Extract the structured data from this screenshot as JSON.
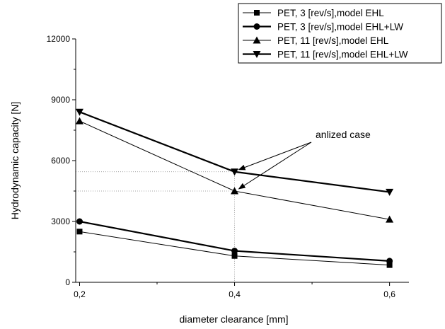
{
  "chart_data": {
    "type": "line",
    "xlabel": "diameter clearance [mm]",
    "ylabel": "Hydrodynamic capacity [N]",
    "x": [
      0.2,
      0.4,
      0.6
    ],
    "x_tick_labels": [
      "0,2",
      "0,4",
      "0,6"
    ],
    "y_ticks": [
      0,
      3000,
      6000,
      9000,
      12000
    ],
    "y_tick_labels": [
      "0",
      "3000",
      "6000",
      "9000",
      "12000"
    ],
    "xlim": [
      0.195,
      0.625
    ],
    "ylim": [
      0,
      12000
    ],
    "grid": false,
    "legend_position": "top-right",
    "series": [
      {
        "name": "PET, 3 [rev/s],model EHL",
        "marker": "square",
        "line_weight": "thin",
        "values": [
          2500,
          1300,
          850
        ]
      },
      {
        "name": "PET, 3 [rev/s],model EHL+LW",
        "marker": "circle",
        "line_weight": "thick",
        "values": [
          3000,
          1550,
          1050
        ]
      },
      {
        "name": "PET, 11 [rev/s],model EHL",
        "marker": "triangle-up",
        "line_weight": "thin",
        "values": [
          7950,
          4500,
          3100
        ]
      },
      {
        "name": "PET, 11 [rev/s],model EHL+LW",
        "marker": "triangle-down",
        "line_weight": "thick",
        "values": [
          8400,
          5450,
          4450
        ]
      }
    ],
    "annotation": {
      "text": "anlized case",
      "x": 0.4,
      "targets": [
        5450,
        4500
      ]
    },
    "colors": {
      "lines": "#000000",
      "guides": "#888888",
      "background": "#ffffff"
    }
  }
}
